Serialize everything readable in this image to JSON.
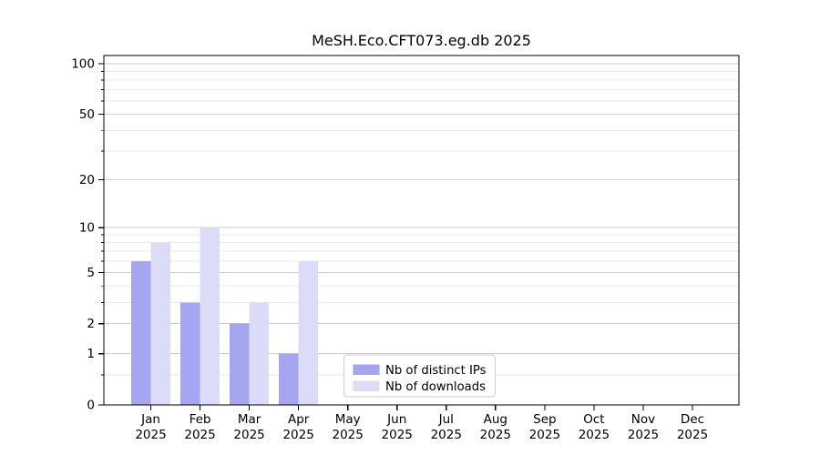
{
  "title": "MeSH.Eco.CFT073.eg.db 2025",
  "chart_data": {
    "type": "bar",
    "title": "MeSH.Eco.CFT073.eg.db 2025",
    "categories": [
      "Jan",
      "Feb",
      "Mar",
      "Apr",
      "May",
      "Jun",
      "Jul",
      "Aug",
      "Sep",
      "Oct",
      "Nov",
      "Dec"
    ],
    "year_label": "2025",
    "series": [
      {
        "name": "Nb of distinct IPs",
        "color": "#a5a5f0",
        "values": [
          6,
          3,
          2,
          1,
          0,
          0,
          0,
          0,
          0,
          0,
          0,
          0
        ]
      },
      {
        "name": "Nb of downloads",
        "color": "#dcdcf8",
        "values": [
          8,
          10,
          3,
          6,
          0,
          0,
          0,
          0,
          0,
          0,
          0,
          0
        ]
      }
    ],
    "xlabel": "",
    "ylabel": "",
    "y_scale": "log10(1+x)",
    "y_major_ticks": [
      0,
      1,
      2,
      5,
      10,
      20,
      50,
      100
    ],
    "y_minor_ticks": [
      0.5,
      3,
      4,
      6,
      7,
      8,
      9,
      30,
      40,
      60,
      70,
      80,
      90
    ],
    "ylim": [
      0,
      112
    ],
    "grid": true,
    "legend_position": "lower center-left inside plot",
    "colors": {
      "major_grid": "#cccccc",
      "minor_grid": "#eaeaea",
      "spine": "#000000",
      "legend_border": "#cccccc",
      "legend_bg": "#ffffff"
    }
  }
}
